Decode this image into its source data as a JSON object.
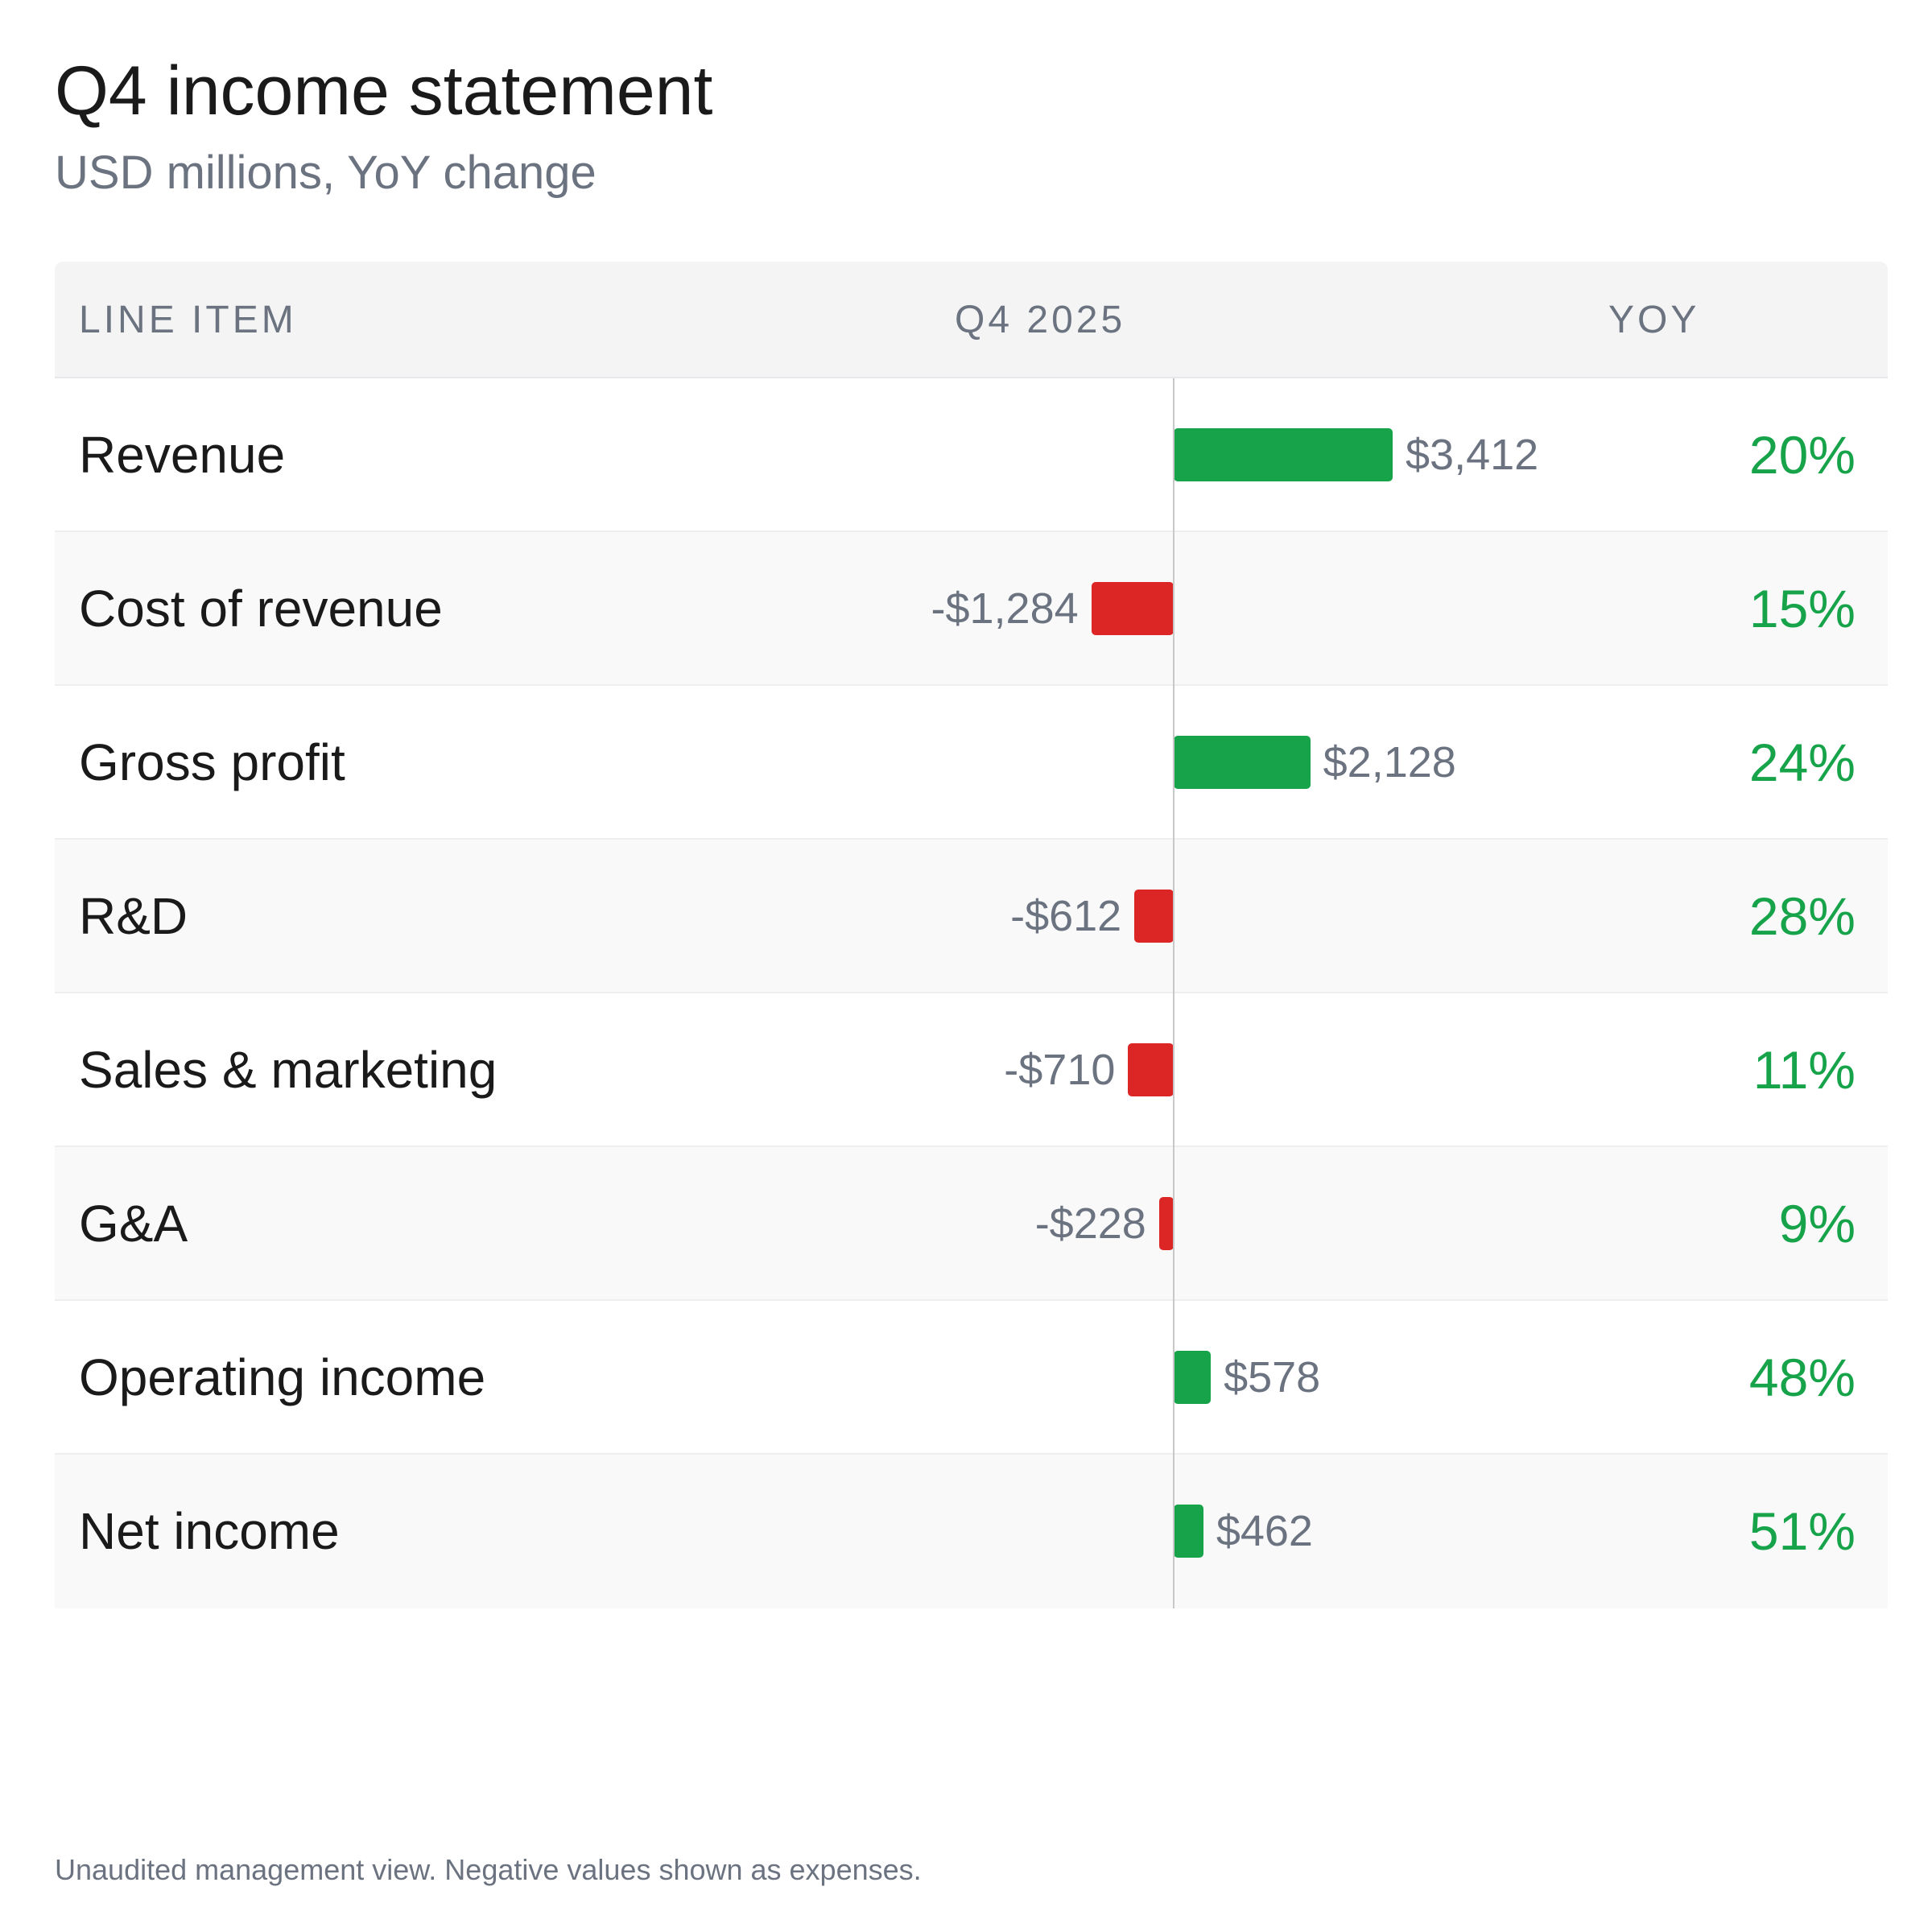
{
  "header": {
    "title": "Q4 income statement",
    "subtitle": "USD millions, YoY change"
  },
  "columns": {
    "line_item": "LINE ITEM",
    "period": "Q4 2025",
    "yoy": "YOY"
  },
  "colors": {
    "positive": "#16a34a",
    "negative": "#dc2626",
    "yoy_text": "#16a34a"
  },
  "footnote": "Unaudited management view. Negative values shown as expenses.",
  "chart_data": {
    "type": "bar",
    "orientation": "horizontal",
    "title": "Q4 income statement",
    "subtitle": "USD millions, YoY change",
    "categories": [
      "Revenue",
      "Cost of revenue",
      "Gross profit",
      "R&D",
      "Sales & marketing",
      "G&A",
      "Operating income",
      "Net income"
    ],
    "series": [
      {
        "values": [
          3412,
          -1284,
          2128,
          -612,
          -710,
          -228,
          578,
          462
        ],
        "value_labels": [
          "$3,412",
          "-$1,284",
          "$2,128",
          "-$612",
          "-$710",
          "-$228",
          "$578",
          "$462"
        ]
      }
    ],
    "yoy": [
      "20%",
      "15%",
      "24%",
      "28%",
      "11%",
      "9%",
      "48%",
      "51%"
    ],
    "grid": false,
    "legend": "none"
  }
}
